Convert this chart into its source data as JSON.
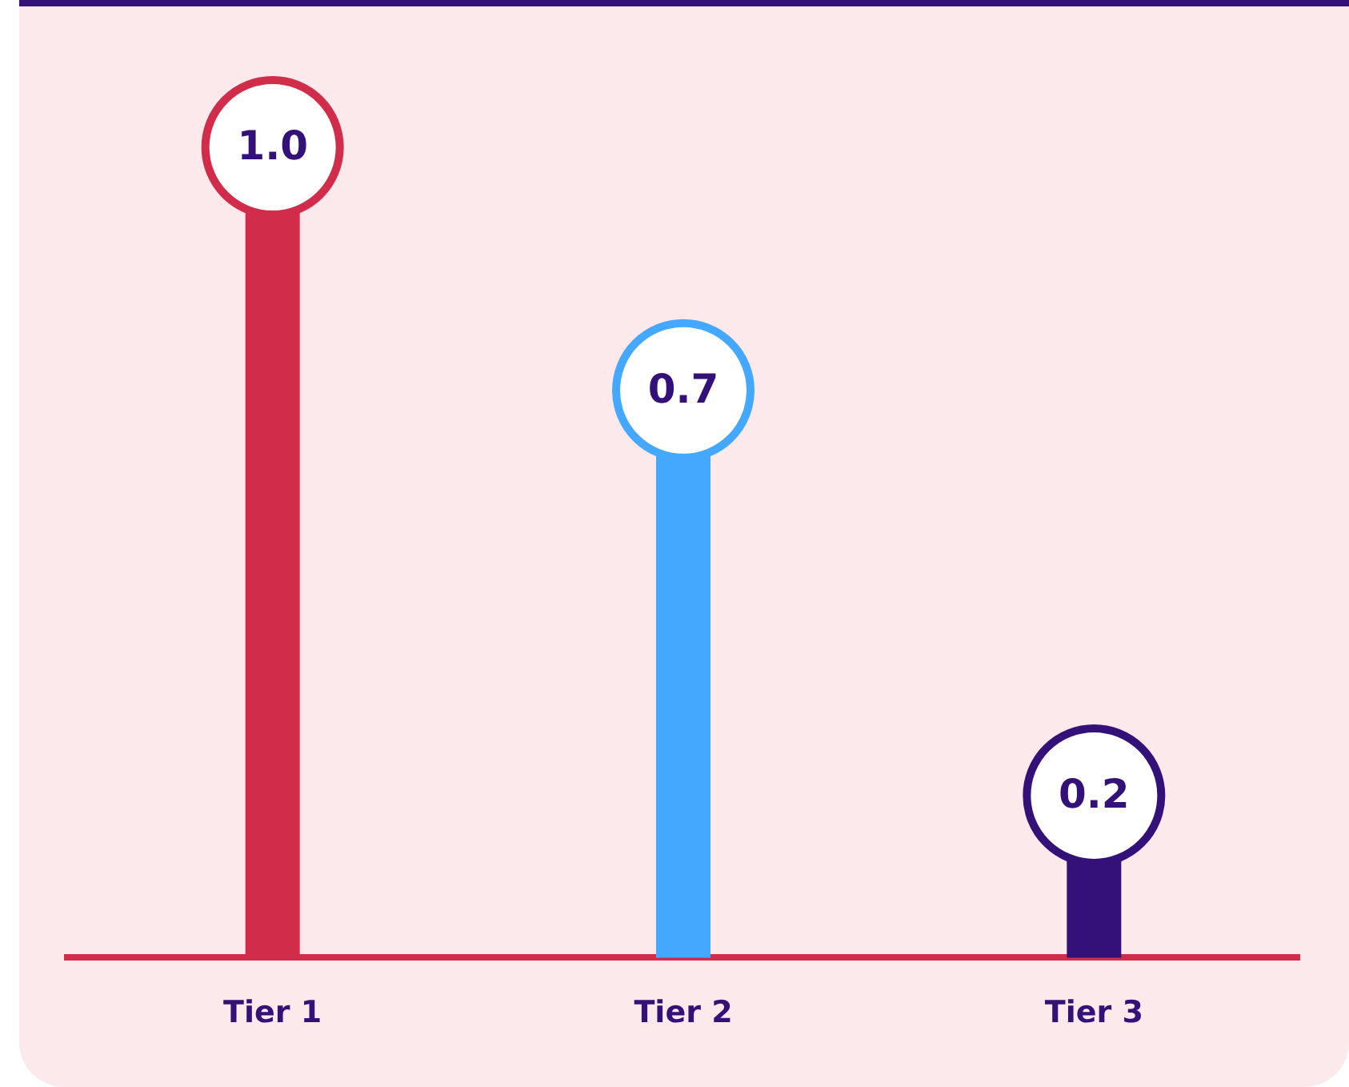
{
  "chart_data": {
    "type": "lollipop",
    "categories": [
      "Tier 1",
      "Tier 2",
      "Tier 3"
    ],
    "values": [
      1.0,
      0.7,
      0.2
    ],
    "value_labels": [
      "1.0",
      "0.7",
      "0.2"
    ],
    "colors": [
      "#d12d4a",
      "#45a8ff",
      "#341079"
    ],
    "grid": false,
    "legend": false
  }
}
